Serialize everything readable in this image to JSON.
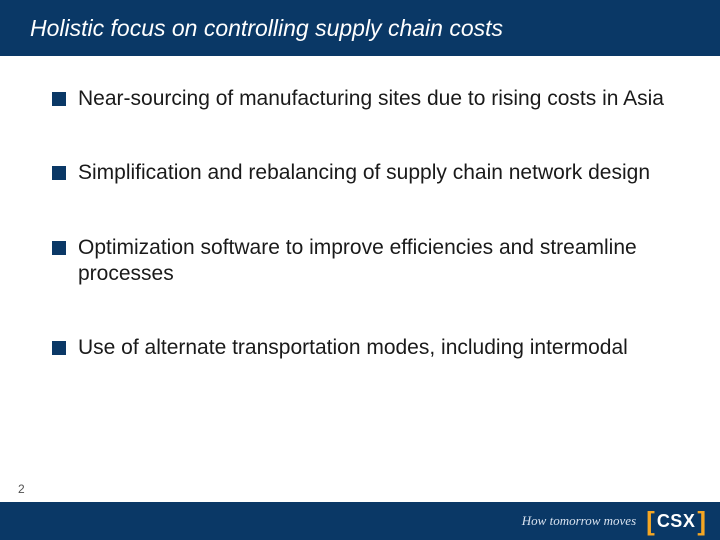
{
  "colors": {
    "title_bg": "#0a3866",
    "title_text": "#ffffff",
    "body_text": "#1a1a1a",
    "bullet": "#0a3866",
    "footer_bg": "#0a3866",
    "logo_bracket": "#f5a623",
    "logo_text": "#ffffff",
    "tagline": "#d9e3f0"
  },
  "title": "Holistic focus on controlling supply chain costs",
  "bullets": [
    "Near-sourcing of manufacturing sites due to rising costs in Asia",
    "Simplification and rebalancing of supply chain network design",
    "Optimization software to improve efficiencies and streamline processes",
    "Use of alternate transportation modes, including intermodal"
  ],
  "page_number": "2",
  "tagline": "How tomorrow moves",
  "logo": "CSX"
}
